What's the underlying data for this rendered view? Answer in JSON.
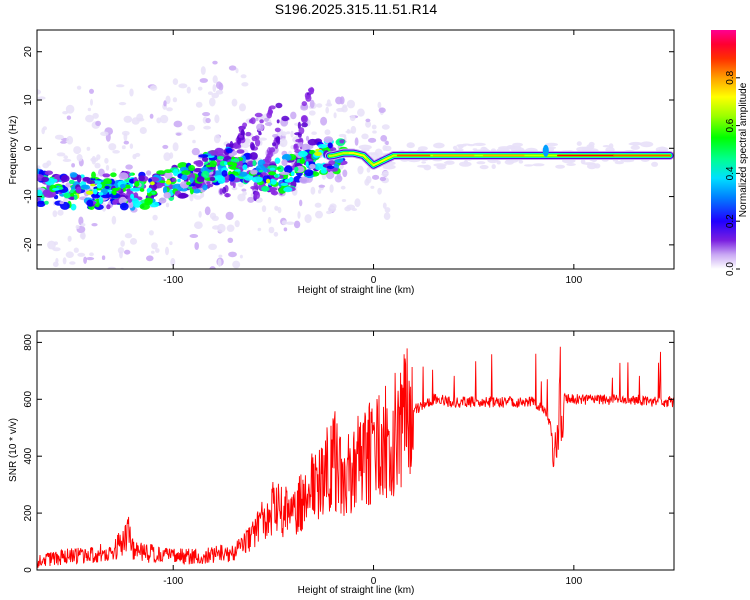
{
  "figure_title": "S196.2025.315.11.51.R14",
  "chart_data": [
    {
      "type": "heatmap",
      "title": "S196.2025.315.11.51.R14",
      "xlabel": "Height of straight line (km)",
      "ylabel": "Frequency (Hz)",
      "xlim": [
        -168,
        150
      ],
      "ylim": [
        -25,
        24.5
      ],
      "xticks": [
        -100,
        0,
        100
      ],
      "yticks": [
        -20,
        -10,
        0,
        10,
        20
      ],
      "colorbar": {
        "label": "Normalized spectral amplitude",
        "range": [
          0,
          1
        ],
        "ticks": [
          "0.0",
          "0.2",
          "0.4",
          "0.6",
          "0.8"
        ]
      },
      "ridge": {
        "description_points_x": [
          -168,
          -150,
          -130,
          -110,
          -90,
          -80,
          -70,
          -60,
          -50,
          -40,
          -30,
          -20,
          -15,
          -10,
          -5,
          0,
          5,
          10,
          20,
          40,
          60,
          80,
          86,
          90,
          110,
          130,
          148
        ],
        "description_points_y": [
          -8,
          -9,
          -9,
          -8.5,
          -6,
          -4,
          -3,
          -4.5,
          -6,
          -5,
          -2,
          -1.5,
          -1,
          -1,
          -1.5,
          -3.5,
          -2.5,
          -1.5,
          -1.5,
          -1.5,
          -1.5,
          -1.5,
          -1.5,
          -1.5,
          -1.5,
          -1.5,
          -1.5
        ]
      },
      "colorscale": [
        "#e8e0f8",
        "#c9a8f4",
        "#8a2be2",
        "#5a00d0",
        "#0000ff",
        "#00a0ff",
        "#00ffff",
        "#00ff80",
        "#00ff00",
        "#ccff00",
        "#ffff00",
        "#ffaa00",
        "#ff5000",
        "#ff0000",
        "#ff0080"
      ]
    },
    {
      "type": "line",
      "xlabel": "Height of straight line (km)",
      "ylabel": "SNR (10 * v/v)",
      "xlim": [
        -168,
        150
      ],
      "ylim": [
        0,
        840
      ],
      "xticks": [
        -100,
        0,
        100
      ],
      "yticks": [
        0,
        200,
        400,
        600,
        800
      ],
      "series": [
        {
          "name": "SNR",
          "color": "#ff0000",
          "x": [
            -168,
            -150,
            -130,
            -122,
            -120,
            -110,
            -90,
            -70,
            -60,
            -50,
            -40,
            -30,
            -25,
            -20,
            -15,
            -10,
            -5,
            0,
            5,
            10,
            15,
            20,
            25,
            30,
            40,
            60,
            80,
            86,
            90,
            95,
            100,
            120,
            150
          ],
          "y": [
            25,
            45,
            55,
            120,
            60,
            50,
            40,
            55,
            110,
            200,
            180,
            280,
            330,
            400,
            300,
            380,
            380,
            430,
            450,
            470,
            540,
            560,
            580,
            600,
            590,
            590,
            590,
            560,
            460,
            600,
            600,
            600,
            590
          ]
        }
      ]
    }
  ]
}
